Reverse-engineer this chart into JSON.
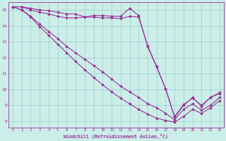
{
  "xlabel": "Windchill (Refroidissement éolien,°C)",
  "xlim": [
    -0.5,
    23.5
  ],
  "ylim": [
    7.6,
    15.5
  ],
  "bg_color": "#cceee8",
  "grid_color": "#99cccc",
  "line_color": "#993399",
  "xticks": [
    0,
    1,
    2,
    3,
    4,
    5,
    6,
    7,
    8,
    9,
    10,
    11,
    12,
    13,
    14,
    15,
    16,
    17,
    18,
    19,
    20,
    21,
    22,
    23
  ],
  "yticks": [
    8,
    9,
    10,
    11,
    12,
    13,
    14,
    15
  ],
  "series": [
    [
      15.2,
      15.2,
      15.1,
      15.0,
      14.95,
      14.85,
      14.75,
      14.75,
      14.55,
      14.65,
      14.65,
      14.6,
      14.6,
      15.1,
      14.65,
      12.7,
      11.4,
      10.05,
      8.25,
      9.0,
      9.5,
      8.95,
      9.5,
      9.8
    ],
    [
      15.2,
      15.2,
      15.0,
      14.85,
      14.75,
      14.6,
      14.5,
      14.5,
      14.55,
      14.55,
      14.5,
      14.5,
      14.45,
      14.6,
      14.55,
      12.75,
      11.45,
      10.05,
      8.3,
      9.05,
      9.45,
      9.0,
      9.5,
      9.75
    ],
    [
      15.2,
      15.0,
      14.6,
      14.1,
      13.65,
      13.2,
      12.7,
      12.3,
      11.9,
      11.5,
      11.1,
      10.65,
      10.2,
      9.85,
      9.5,
      9.1,
      8.85,
      8.5,
      8.1,
      8.75,
      9.1,
      8.7,
      9.0,
      9.5
    ],
    [
      15.2,
      15.0,
      14.55,
      13.95,
      13.4,
      12.85,
      12.3,
      11.75,
      11.25,
      10.75,
      10.3,
      9.85,
      9.45,
      9.1,
      8.75,
      8.45,
      8.2,
      8.05,
      7.95,
      8.3,
      8.75,
      8.5,
      8.85,
      9.3
    ]
  ]
}
